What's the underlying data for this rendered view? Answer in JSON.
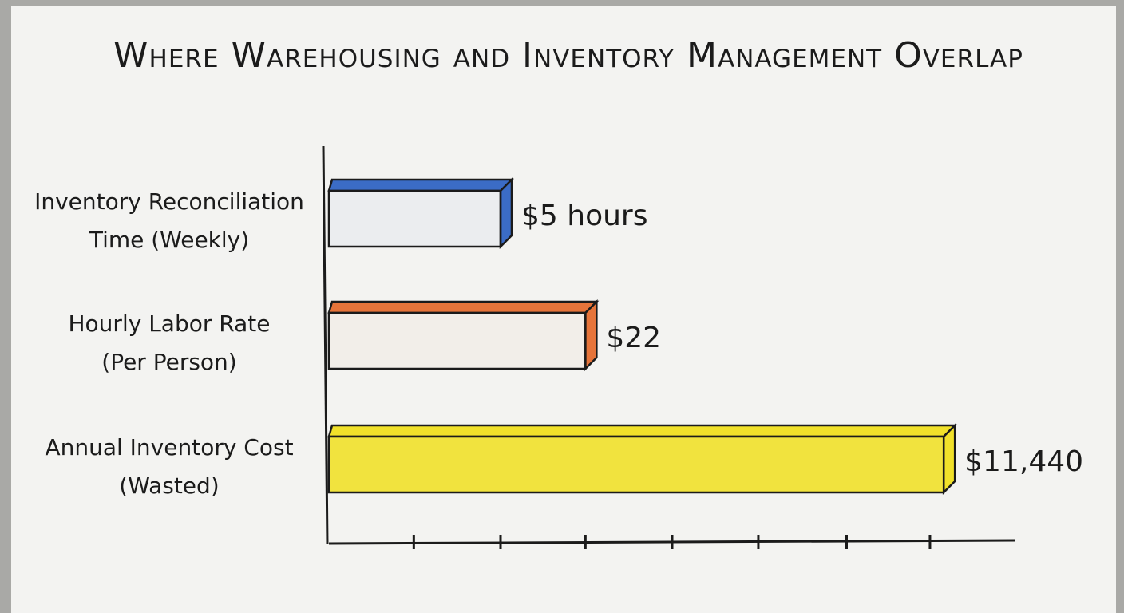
{
  "chart_data": {
    "type": "hbar",
    "title": "Where Warehousing and Inventory Management Overlap",
    "categories": [
      [
        "Inventory Reconciliation",
        "Time (Weekly)"
      ],
      [
        "Hourly Labor Rate",
        "(Per Person)"
      ],
      [
        "Annual Inventory Cost",
        "(Wasted)"
      ]
    ],
    "values": [
      5,
      22,
      11440
    ],
    "value_labels": [
      "$5 hours",
      "$22",
      "$11,440"
    ],
    "colors": [
      "#3b6cc6",
      "#e6743a",
      "#f1e12a"
    ],
    "xscale": "log",
    "xlim": [
      0.25,
      40000
    ],
    "xticks": [
      1.1,
      5,
      22,
      100,
      450,
      2100,
      9000
    ],
    "xtick_labels": false
  }
}
